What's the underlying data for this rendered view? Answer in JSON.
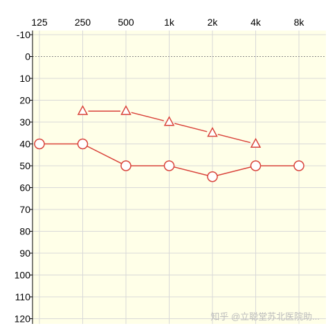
{
  "chart_data": {
    "type": "line",
    "x_ticks": [
      "125",
      "250",
      "500",
      "1k",
      "2k",
      "4k",
      "8k"
    ],
    "y_ticks": [
      "-10",
      "0",
      "10",
      "20",
      "30",
      "40",
      "50",
      "60",
      "70",
      "80",
      "90",
      "100",
      "110",
      "120"
    ],
    "ylim": [
      -10,
      120
    ],
    "y_inverted": true,
    "grid": true,
    "series": [
      {
        "marker": "circle",
        "color": "#d9423a",
        "x": [
          "125",
          "250",
          "500",
          "1k",
          "2k",
          "4k",
          "8k"
        ],
        "values": [
          40,
          40,
          50,
          50,
          55,
          50,
          50
        ]
      },
      {
        "marker": "triangle",
        "color": "#d9423a",
        "x": [
          "250",
          "500",
          "1k",
          "2k",
          "4k"
        ],
        "values": [
          25,
          25,
          30,
          35,
          40
        ]
      }
    ]
  },
  "watermark": "知乎 @立聪堂苏北医院助..."
}
